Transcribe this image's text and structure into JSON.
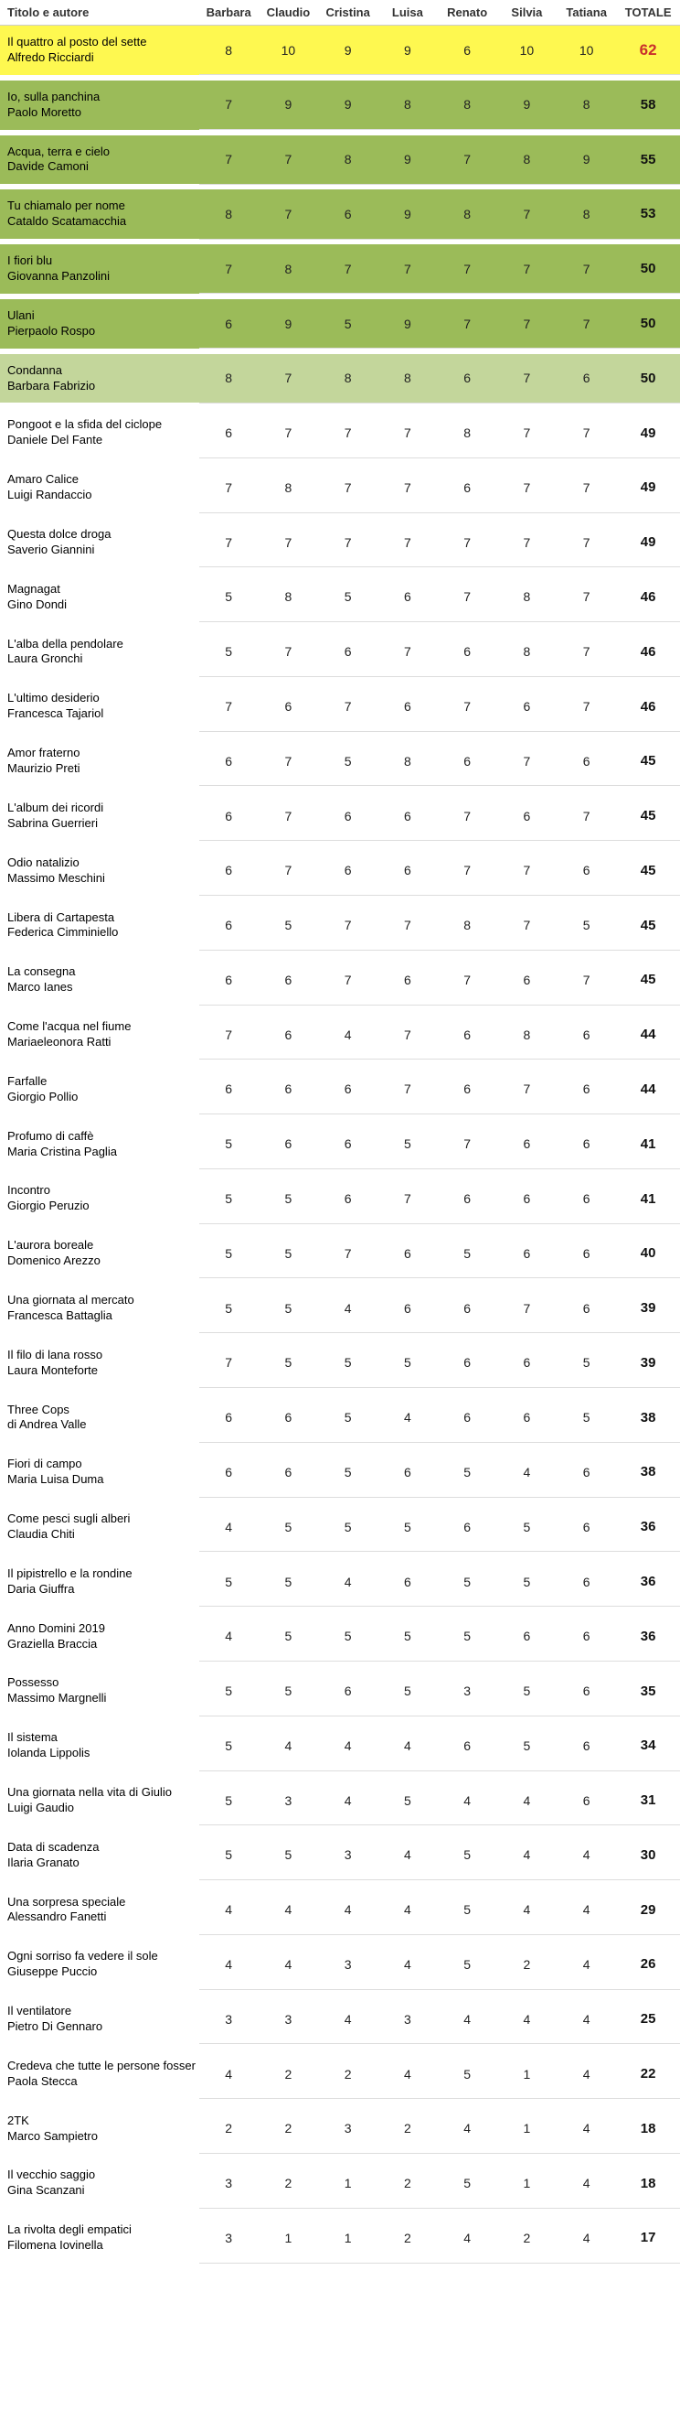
{
  "headers": {
    "title": "Titolo e autore",
    "judges": [
      "Barbara",
      "Claudio",
      "Cristina",
      "Luisa",
      "Renato",
      "Silvia",
      "Tatiana"
    ],
    "total": "TOTALE"
  },
  "rows": [
    {
      "title": "Il quattro al posto del sette",
      "author": "Alfredo Ricciardi",
      "scores": [
        8,
        10,
        9,
        9,
        6,
        10,
        10
      ],
      "total": 62,
      "hl": "yellow"
    },
    {
      "title": "Io, sulla panchina",
      "author": "Paolo Moretto",
      "scores": [
        7,
        9,
        9,
        8,
        8,
        9,
        8
      ],
      "total": 58,
      "hl": "green"
    },
    {
      "title": "Acqua, terra e cielo",
      "author": "Davide Camoni",
      "scores": [
        7,
        7,
        8,
        9,
        7,
        8,
        9
      ],
      "total": 55,
      "hl": "green"
    },
    {
      "title": "Tu chiamalo per nome",
      "author": "Cataldo Scatamacchia",
      "scores": [
        8,
        7,
        6,
        9,
        8,
        7,
        8
      ],
      "total": 53,
      "hl": "green"
    },
    {
      "title": "I fiori blu",
      "author": "Giovanna Panzolini",
      "scores": [
        7,
        8,
        7,
        7,
        7,
        7,
        7
      ],
      "total": 50,
      "hl": "green"
    },
    {
      "title": "Ulani",
      "author": "Pierpaolo Rospo",
      "scores": [
        6,
        9,
        5,
        9,
        7,
        7,
        7
      ],
      "total": 50,
      "hl": "green"
    },
    {
      "title": "Condanna",
      "author": "Barbara Fabrizio",
      "scores": [
        8,
        7,
        8,
        8,
        6,
        7,
        6
      ],
      "total": 50,
      "hl": "green2"
    },
    {
      "title": "Pongoot e la sfida del ciclope",
      "author": "Daniele Del Fante",
      "scores": [
        6,
        7,
        7,
        7,
        8,
        7,
        7
      ],
      "total": 49
    },
    {
      "title": "Amaro Calice",
      "author": "Luigi Randaccio",
      "scores": [
        7,
        8,
        7,
        7,
        6,
        7,
        7
      ],
      "total": 49
    },
    {
      "title": "Questa dolce droga",
      "author": "Saverio Giannini",
      "scores": [
        7,
        7,
        7,
        7,
        7,
        7,
        7
      ],
      "total": 49
    },
    {
      "title": "Magnagat",
      "author": "Gino Dondi",
      "scores": [
        5,
        8,
        5,
        6,
        7,
        8,
        7
      ],
      "total": 46
    },
    {
      "title": "L'alba della pendolare",
      "author": "Laura Gronchi",
      "scores": [
        5,
        7,
        6,
        7,
        6,
        8,
        7
      ],
      "total": 46
    },
    {
      "title": "L'ultimo desiderio",
      "author": "Francesca Tajariol",
      "scores": [
        7,
        6,
        7,
        6,
        7,
        6,
        7
      ],
      "total": 46
    },
    {
      "title": "Amor fraterno",
      "author": "Maurizio Preti",
      "scores": [
        6,
        7,
        5,
        8,
        6,
        7,
        6
      ],
      "total": 45
    },
    {
      "title": "L'album dei ricordi",
      "author": "Sabrina Guerrieri",
      "scores": [
        6,
        7,
        6,
        6,
        7,
        6,
        7
      ],
      "total": 45
    },
    {
      "title": "Odio natalizio",
      "author": "Massimo Meschini",
      "scores": [
        6,
        7,
        6,
        6,
        7,
        7,
        6
      ],
      "total": 45
    },
    {
      "title": "Libera di Cartapesta",
      "author": "Federica Cimminiello",
      "scores": [
        6,
        5,
        7,
        7,
        8,
        7,
        5
      ],
      "total": 45
    },
    {
      "title": "La consegna",
      "author": "Marco Ianes",
      "scores": [
        6,
        6,
        7,
        6,
        7,
        6,
        7
      ],
      "total": 45
    },
    {
      "title": "Come l'acqua nel fiume",
      "author": "Mariaeleonora Ratti",
      "scores": [
        7,
        6,
        4,
        7,
        6,
        8,
        6
      ],
      "total": 44
    },
    {
      "title": "Farfalle",
      "author": "Giorgio Pollio",
      "scores": [
        6,
        6,
        6,
        7,
        6,
        7,
        6
      ],
      "total": 44
    },
    {
      "title": "Profumo di caffè",
      "author": "Maria Cristina Paglia",
      "scores": [
        5,
        6,
        6,
        5,
        7,
        6,
        6
      ],
      "total": 41
    },
    {
      "title": "Incontro",
      "author": "Giorgio Peruzio",
      "scores": [
        5,
        5,
        6,
        7,
        6,
        6,
        6
      ],
      "total": 41
    },
    {
      "title": "L'aurora boreale",
      "author": "Domenico Arezzo",
      "scores": [
        5,
        5,
        7,
        6,
        5,
        6,
        6
      ],
      "total": 40
    },
    {
      "title": "Una giornata al mercato",
      "author": "Francesca Battaglia",
      "scores": [
        5,
        5,
        4,
        6,
        6,
        7,
        6
      ],
      "total": 39
    },
    {
      "title": "Il filo di lana rosso",
      "author": "Laura Monteforte",
      "scores": [
        7,
        5,
        5,
        5,
        6,
        6,
        5
      ],
      "total": 39
    },
    {
      "title": "Three Cops",
      "author": "di Andrea Valle",
      "scores": [
        6,
        6,
        5,
        4,
        6,
        6,
        5
      ],
      "total": 38
    },
    {
      "title": "Fiori di campo",
      "author": "Maria Luisa Duma",
      "scores": [
        6,
        6,
        5,
        6,
        5,
        4,
        6
      ],
      "total": 38
    },
    {
      "title": "Come pesci sugli alberi",
      "author": "Claudia Chiti",
      "scores": [
        4,
        5,
        5,
        5,
        6,
        5,
        6
      ],
      "total": 36
    },
    {
      "title": "Il pipistrello e la rondine",
      "author": "Daria Giuffra",
      "scores": [
        5,
        5,
        4,
        6,
        5,
        5,
        6
      ],
      "total": 36
    },
    {
      "title": "Anno Domini 2019",
      "author": "Graziella Braccia",
      "scores": [
        4,
        5,
        5,
        5,
        5,
        6,
        6
      ],
      "total": 36
    },
    {
      "title": "Possesso",
      "author": "Massimo Margnelli",
      "scores": [
        5,
        5,
        6,
        5,
        3,
        5,
        6
      ],
      "total": 35
    },
    {
      "title": "Il sistema",
      "author": "Iolanda Lippolis",
      "scores": [
        5,
        4,
        4,
        4,
        6,
        5,
        6
      ],
      "total": 34
    },
    {
      "title": "Una giornata nella vita di Giulio",
      "author": "Luigi Gaudio",
      "scores": [
        5,
        3,
        4,
        5,
        4,
        4,
        6
      ],
      "total": 31
    },
    {
      "title": "Data di scadenza",
      "author": "Ilaria Granato",
      "scores": [
        5,
        5,
        3,
        4,
        5,
        4,
        4
      ],
      "total": 30
    },
    {
      "title": "Una sorpresa speciale",
      "author": "Alessandro Fanetti",
      "scores": [
        4,
        4,
        4,
        4,
        5,
        4,
        4
      ],
      "total": 29
    },
    {
      "title": "Ogni sorriso fa vedere il sole",
      "author": "Giuseppe Puccio",
      "scores": [
        4,
        4,
        3,
        4,
        5,
        2,
        4
      ],
      "total": 26
    },
    {
      "title": "Il ventilatore",
      "author": "Pietro Di Gennaro",
      "scores": [
        3,
        3,
        4,
        3,
        4,
        4,
        4
      ],
      "total": 25
    },
    {
      "title": "Credeva che tutte le persone fossero",
      "author": "Paola Stecca",
      "scores": [
        4,
        2,
        2,
        4,
        5,
        1,
        4
      ],
      "total": 22
    },
    {
      "title": "2TK",
      "author": "Marco Sampietro",
      "scores": [
        2,
        2,
        3,
        2,
        4,
        1,
        4
      ],
      "total": 18
    },
    {
      "title": "Il vecchio saggio",
      "author": "Gina Scanzani",
      "scores": [
        3,
        2,
        1,
        2,
        5,
        1,
        4
      ],
      "total": 18
    },
    {
      "title": "La rivolta degli empatici",
      "author": "Filomena Iovinella",
      "scores": [
        3,
        1,
        1,
        2,
        4,
        2,
        4
      ],
      "total": 17
    }
  ]
}
